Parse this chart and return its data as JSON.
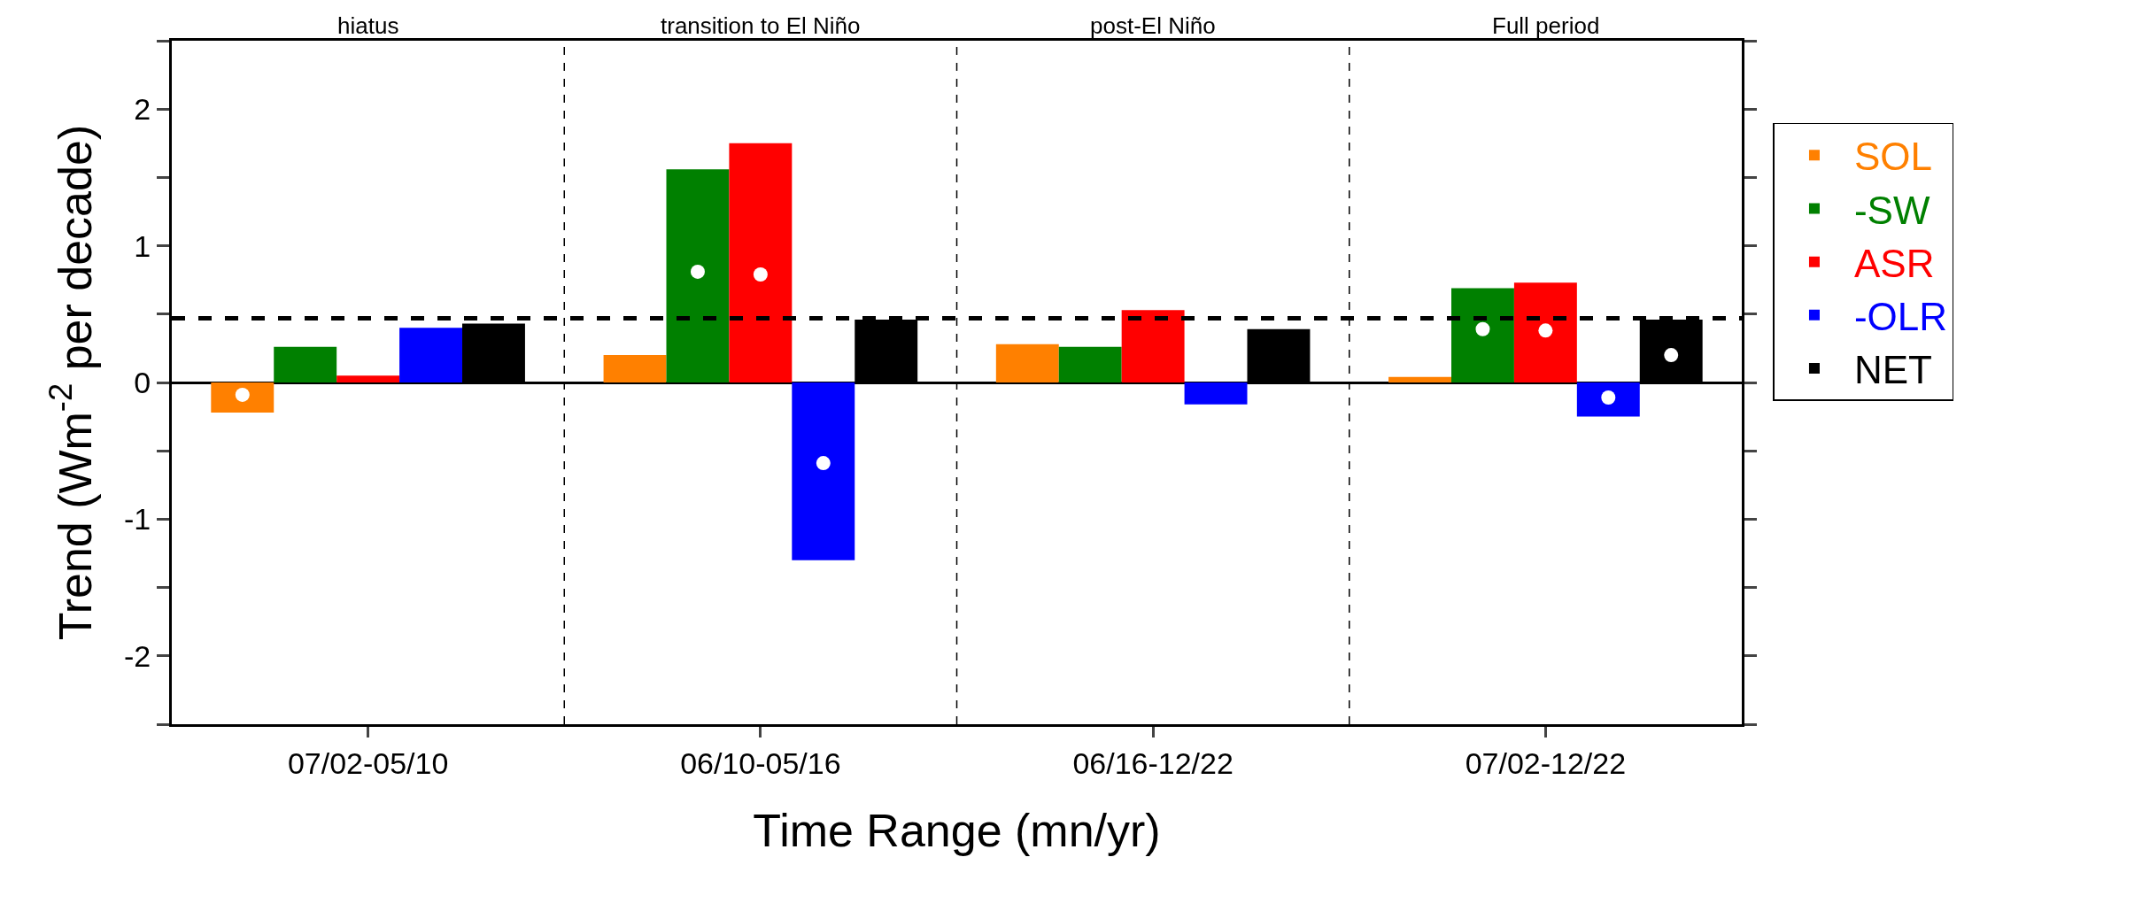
{
  "chart_data": {
    "type": "bar",
    "xlabel": "Time Range (mn/yr)",
    "ylabel": "Trend (Wm$^{-2}$ per decade)",
    "categories": [
      "07/02-05/10",
      "06/10-05/16",
      "06/16-12/22",
      "07/02-12/22"
    ],
    "series": [
      {
        "name": "SOL",
        "color": "#ff8000",
        "values": [
          -0.22,
          0.2,
          0.28,
          0.04
        ]
      },
      {
        "name": "-SW",
        "color": "#008000",
        "values": [
          0.26,
          1.56,
          0.26,
          0.69
        ]
      },
      {
        "name": "ASR",
        "color": "#ff0000",
        "values": [
          0.05,
          1.75,
          0.53,
          0.73
        ]
      },
      {
        "name": "-OLR",
        "color": "#0000ff",
        "values": [
          0.4,
          -1.3,
          -0.16,
          -0.25
        ]
      },
      {
        "name": "NET",
        "color": "#000000",
        "values": [
          0.43,
          0.46,
          0.39,
          0.46
        ]
      },
      {
        "type": "scatter",
        "color": "#ffffff",
        "values": [
          -0.09,
          null,
          null,
          null
        ]
      },
      {
        "type": "scatter",
        "color": "#ffffff",
        "values": [
          null,
          0.81,
          null,
          0.39
        ]
      },
      {
        "type": "scatter",
        "color": "#ffffff",
        "values": [
          null,
          0.79,
          null,
          0.38
        ]
      },
      {
        "type": "scatter",
        "color": "#ffffff",
        "values": [
          null,
          -0.59,
          null,
          -0.11
        ]
      },
      {
        "type": "scatter",
        "color": "#ffffff",
        "values": [
          null,
          null,
          null,
          0.2
        ]
      }
    ],
    "marker": "circle",
    "ylim": [
      -2.5,
      2.5
    ],
    "yticks": [
      {
        "value": -2.5,
        "label": null
      },
      -2,
      {
        "value": -1.5,
        "label": null
      },
      -1,
      {
        "value": -0.5,
        "label": null
      },
      0,
      {
        "value": 0.5,
        "label": null
      },
      1,
      {
        "value": 1.5,
        "label": null
      },
      2,
      {
        "value": 2.5,
        "label": null
      }
    ],
    "ref_lines": [
      {
        "axis": "y",
        "value": 0.47,
        "color": "#000000",
        "line_style": "dashed"
      }
    ],
    "annotations": [
      "hiatus",
      "transition to El Niño",
      "post-El Niño",
      "Full period"
    ],
    "legend": "right"
  }
}
